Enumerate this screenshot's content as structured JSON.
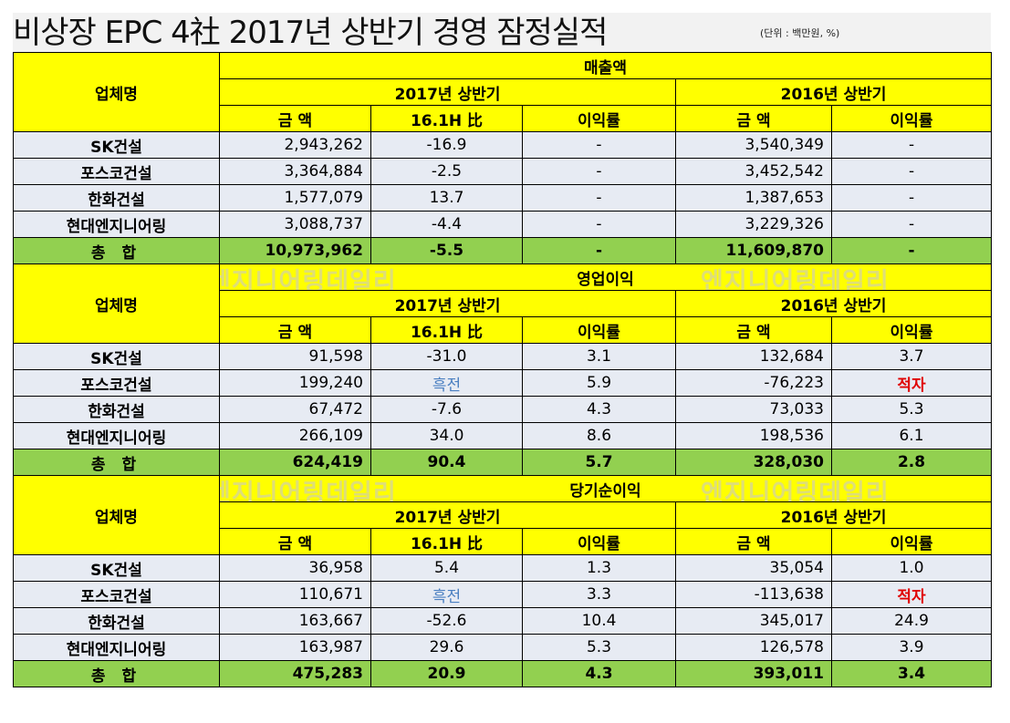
{
  "title": "비상장 EPC 4社 2017년 상반기 경영 잠정실적",
  "unit_note": "(단위 : 백만원, %)",
  "watermark": "엔지니어링데일리",
  "headers": {
    "company": "업체명",
    "period_2017": "2017년 상반기",
    "period_2016": "2016년 상반기",
    "amount": "금  액",
    "vs_prev": "16.1H 比",
    "margin": "이익률"
  },
  "sections": [
    {
      "title": "매출액",
      "rows": [
        {
          "name": "SK건설",
          "amt17": "2,943,262",
          "vs": "-16.9",
          "m17": "-",
          "amt16": "3,540,349",
          "m16": "-"
        },
        {
          "name": "포스코건설",
          "amt17": "3,364,884",
          "vs": "-2.5",
          "m17": "-",
          "amt16": "3,452,542",
          "m16": "-"
        },
        {
          "name": "한화건설",
          "amt17": "1,577,079",
          "vs": "13.7",
          "m17": "-",
          "amt16": "1,387,653",
          "m16": "-"
        },
        {
          "name": "현대엔지니어링",
          "amt17": "3,088,737",
          "vs": "-4.4",
          "m17": "-",
          "amt16": "3,229,326",
          "m16": "-"
        }
      ],
      "total": {
        "name": "총 합",
        "amt17": "10,973,962",
        "vs": "-5.5",
        "m17": "-",
        "amt16": "11,609,870",
        "m16": "-"
      }
    },
    {
      "title": "영업이익",
      "rows": [
        {
          "name": "SK건설",
          "amt17": "91,598",
          "vs": "-31.0",
          "m17": "3.1",
          "amt16": "132,684",
          "m16": "3.7"
        },
        {
          "name": "포스코건설",
          "amt17": "199,240",
          "vs": "흑전",
          "m17": "5.9",
          "amt16": "-76,223",
          "m16": "적자"
        },
        {
          "name": "한화건설",
          "amt17": "67,472",
          "vs": "-7.6",
          "m17": "4.3",
          "amt16": "73,033",
          "m16": "5.3"
        },
        {
          "name": "현대엔지니어링",
          "amt17": "266,109",
          "vs": "34.0",
          "m17": "8.6",
          "amt16": "198,536",
          "m16": "6.1"
        }
      ],
      "total": {
        "name": "총 합",
        "amt17": "624,419",
        "vs": "90.4",
        "m17": "5.7",
        "amt16": "328,030",
        "m16": "2.8"
      }
    },
    {
      "title": "당기순이익",
      "rows": [
        {
          "name": "SK건설",
          "amt17": "36,958",
          "vs": "5.4",
          "m17": "1.3",
          "amt16": "35,054",
          "m16": "1.0"
        },
        {
          "name": "포스코건설",
          "amt17": "110,671",
          "vs": "흑전",
          "m17": "3.3",
          "amt16": "-113,638",
          "m16": "적자"
        },
        {
          "name": "한화건설",
          "amt17": "163,667",
          "vs": "-52.6",
          "m17": "10.4",
          "amt16": "345,017",
          "m16": "24.9"
        },
        {
          "name": "현대엔지니어링",
          "amt17": "163,987",
          "vs": "29.6",
          "m17": "5.3",
          "amt16": "126,578",
          "m16": "3.9"
        }
      ],
      "total": {
        "name": "총 합",
        "amt17": "475,283",
        "vs": "20.9",
        "m17": "4.3",
        "amt16": "393,011",
        "m16": "3.4"
      }
    }
  ],
  "colors": {
    "header": "#ffff00",
    "row": "#e7ebf3",
    "total": "#92d050",
    "turnaround": "#4a7fc1",
    "deficit": "#e00000"
  }
}
